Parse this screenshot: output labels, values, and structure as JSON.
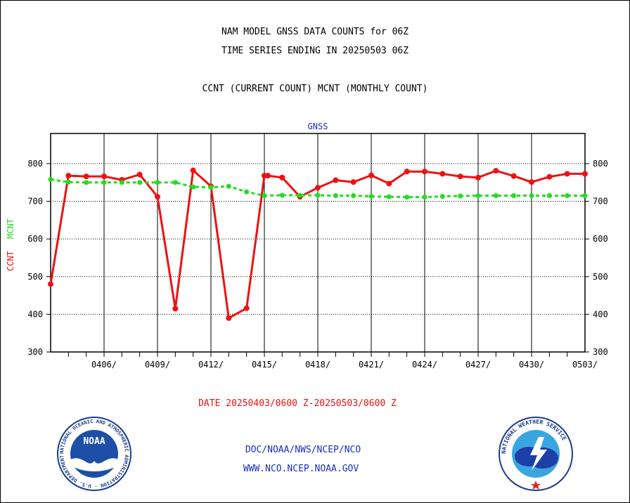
{
  "header": {
    "line1": "NAM MODEL GNSS DATA COUNTS for 06Z",
    "line2": "TIME SERIES ENDING IN 20250503 06Z",
    "line3": "CCNT (CURRENT COUNT) MCNT (MONTHLY COUNT)"
  },
  "chart_data": {
    "type": "line",
    "title": "GNSS",
    "ylabel_parts": [
      "CCNT",
      "MCNT"
    ],
    "ylim": [
      300,
      880
    ],
    "yticks": [
      300,
      400,
      500,
      600,
      700,
      800
    ],
    "xlim": [
      0,
      30
    ],
    "xticks": [
      {
        "day": 3,
        "label": "0406/"
      },
      {
        "day": 6,
        "label": "0409/"
      },
      {
        "day": 9,
        "label": "0412/"
      },
      {
        "day": 12,
        "label": "0415/"
      },
      {
        "day": 15,
        "label": "0418/"
      },
      {
        "day": 18,
        "label": "0421/"
      },
      {
        "day": 21,
        "label": "0424/"
      },
      {
        "day": 24,
        "label": "0427/"
      },
      {
        "day": 27,
        "label": "0430/"
      },
      {
        "day": 30,
        "label": "0503/"
      }
    ],
    "grid": true,
    "xlabel": "DATE 20250403/0600 Z-20250503/0600 Z",
    "series": [
      {
        "name": "CCNT",
        "color": "#ee1111",
        "style": "solid",
        "x": [
          0,
          1,
          2,
          3,
          4,
          5,
          6,
          7,
          8,
          9,
          10,
          11,
          12,
          12.2,
          13,
          14,
          15,
          16,
          17,
          18,
          19,
          20,
          21,
          22,
          23,
          24,
          25,
          26,
          27,
          28,
          29,
          30
        ],
        "y": [
          480,
          768,
          766,
          766,
          757,
          771,
          712,
          415,
          782,
          740,
          390,
          416,
          768,
          768,
          763,
          712,
          736,
          756,
          751,
          769,
          747,
          779,
          779,
          773,
          766,
          763,
          781,
          767,
          751,
          765,
          773,
          773
        ]
      },
      {
        "name": "MCNT",
        "color": "#22dd22",
        "style": "dotted",
        "x": [
          0,
          1,
          2,
          3,
          4,
          5,
          6,
          7,
          8,
          9,
          10,
          11,
          12,
          13,
          14,
          15,
          16,
          17,
          18,
          19,
          20,
          21,
          22,
          23,
          24,
          25,
          26,
          27,
          28,
          29,
          30
        ],
        "y": [
          758,
          751,
          750,
          750,
          750,
          750,
          750,
          750,
          738,
          737,
          740,
          725,
          715,
          716,
          716,
          716,
          715,
          715,
          713,
          712,
          711,
          711,
          713,
          714,
          715,
          715,
          715,
          715,
          715,
          715,
          715
        ]
      }
    ]
  },
  "footer": {
    "line1": "DOC/NOAA/NWS/NCEP/NCO",
    "line2": "WWW.NCO.NCEP.NOAA.GOV"
  },
  "logos": {
    "noaa": {
      "text": "NOAA",
      "ring_text": "NATIONAL OCEANIC AND ATMOSPHERIC ADMINISTRATION · U.S. DEPARTMENT OF COMMERCE"
    },
    "nws": {
      "ring_text": "NATIONAL WEATHER SERVICE"
    }
  }
}
